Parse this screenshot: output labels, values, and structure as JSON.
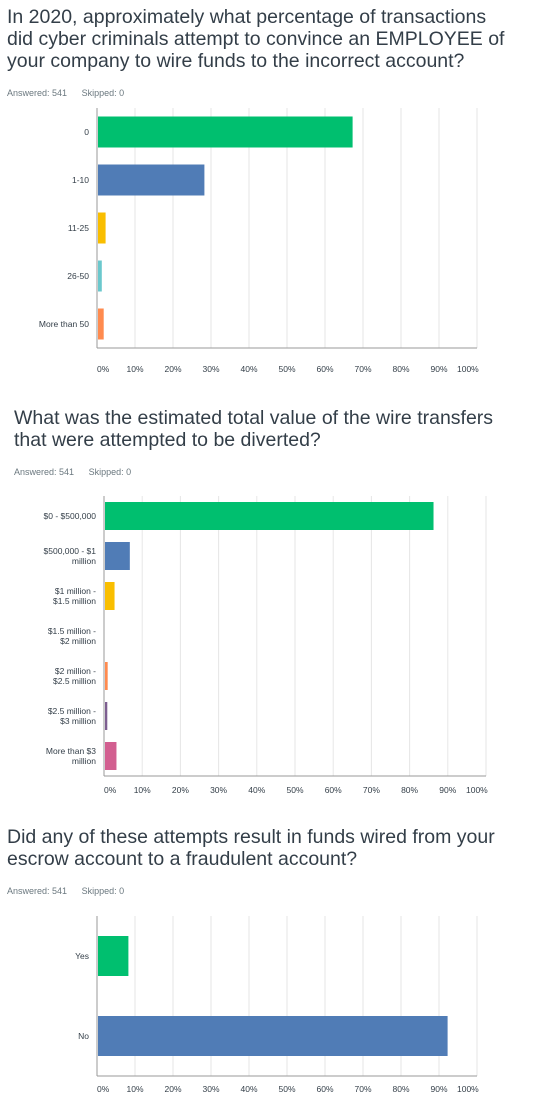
{
  "questions": [
    {
      "title_lines": [
        "In 2020, approximately what percentage of transactions",
        "did cyber criminals attempt to convince an EMPLOYEE of",
        "your company to wire funds to the incorrect account?"
      ],
      "answered": "Answered: 541",
      "skipped": "Skipped: 0"
    },
    {
      "title_lines": [
        "What was the estimated total value of the wire transfers",
        "that were attempted to be diverted?"
      ],
      "answered": "Answered: 541",
      "skipped": "Skipped: 0"
    },
    {
      "title_lines": [
        "Did any of these attempts result in funds wired from your",
        "escrow account to a fraudulent account?"
      ],
      "answered": "Answered: 541",
      "skipped": "Skipped: 0"
    }
  ],
  "colors": {
    "green": "#00bf6f",
    "blue": "#507cb6",
    "yellow": "#f9be00",
    "teal": "#6bc8cd",
    "orange": "#ff8b4f",
    "purple": "#7d5e90",
    "pink": "#d25f90",
    "grid": "#e6e6e6",
    "axis": "#999999"
  },
  "chart_data": [
    {
      "type": "bar",
      "orientation": "horizontal",
      "categories": [
        [
          "0"
        ],
        [
          "1-10"
        ],
        [
          "11-25"
        ],
        [
          "26-50"
        ],
        [
          "More than 50"
        ]
      ],
      "values": [
        67,
        28,
        2,
        1,
        1.5
      ],
      "bar_colors": [
        "green",
        "blue",
        "yellow",
        "teal",
        "orange"
      ],
      "xlim": [
        0,
        100
      ],
      "xticks": [
        "0%",
        "10%",
        "20%",
        "30%",
        "40%",
        "50%",
        "60%",
        "70%",
        "80%",
        "90%",
        "100%"
      ],
      "grid": true
    },
    {
      "type": "bar",
      "orientation": "horizontal",
      "categories": [
        [
          "$0 - $500,000"
        ],
        [
          "$500,000 - $1",
          "million"
        ],
        [
          "$1 million -",
          "$1.5 million"
        ],
        [
          "$1.5 million -",
          "$2 million"
        ],
        [
          "$2 million -",
          "$2.5 million"
        ],
        [
          "$2.5 million -",
          "$3 million"
        ],
        [
          "More than $3",
          "million"
        ]
      ],
      "values": [
        86,
        6.5,
        2.5,
        0,
        0.7,
        0.6,
        3
      ],
      "bar_colors": [
        "green",
        "blue",
        "yellow",
        "teal",
        "orange",
        "purple",
        "pink"
      ],
      "xlim": [
        0,
        100
      ],
      "xticks": [
        "0%",
        "10%",
        "20%",
        "30%",
        "40%",
        "50%",
        "60%",
        "70%",
        "80%",
        "90%",
        "100%"
      ],
      "grid": true
    },
    {
      "type": "bar",
      "orientation": "horizontal",
      "categories": [
        [
          "Yes"
        ],
        [
          "No"
        ]
      ],
      "values": [
        8,
        92
      ],
      "bar_colors": [
        "green",
        "blue"
      ],
      "xlim": [
        0,
        100
      ],
      "xticks": [
        "0%",
        "10%",
        "20%",
        "30%",
        "40%",
        "50%",
        "60%",
        "70%",
        "80%",
        "90%",
        "100%"
      ],
      "grid": true
    }
  ]
}
